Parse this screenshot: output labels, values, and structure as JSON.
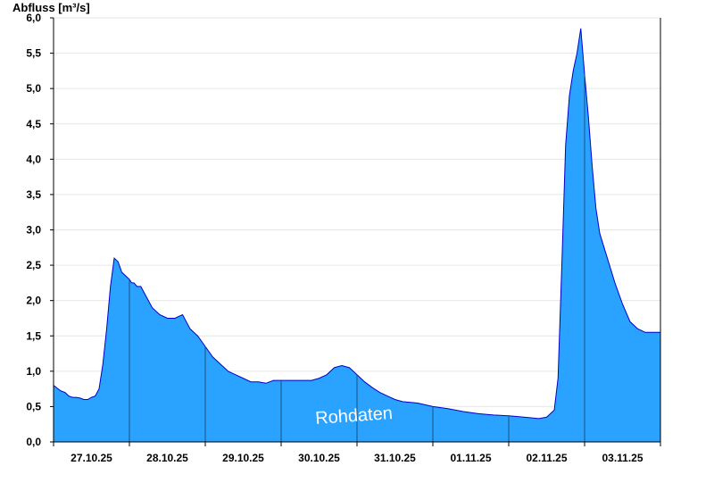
{
  "chart_data": {
    "type": "area",
    "ylabel": "Abfluss [m³/s]",
    "watermark": "Rohdaten",
    "ylim": [
      0,
      6.0
    ],
    "y_ticks": [
      "0,0",
      "0,5",
      "1,0",
      "1,5",
      "2,0",
      "2,5",
      "3,0",
      "3,5",
      "4,0",
      "4,5",
      "5,0",
      "5,5",
      "6,0"
    ],
    "x_range_days": [
      0,
      8
    ],
    "x_tick_labels": [
      "27.10.25",
      "28.10.25",
      "29.10.25",
      "30.10.25",
      "31.10.25",
      "01.11.25",
      "02.11.25",
      "03.11.25"
    ],
    "grid": true,
    "colors": {
      "fill": "#29a3ff",
      "line": "#0000cc",
      "axis": "#000000",
      "grid": "#e6e6e6"
    },
    "series": [
      {
        "x": [
          0,
          0.06,
          0.1,
          0.15,
          0.2,
          0.25,
          0.3,
          0.35,
          0.4,
          0.45,
          0.5,
          0.55,
          0.6,
          0.65,
          0.7,
          0.75,
          0.8,
          0.85,
          0.9,
          0.95,
          1.0,
          1.03,
          1.06,
          1.1,
          1.15,
          1.2,
          1.3,
          1.4,
          1.5,
          1.6,
          1.7,
          1.8,
          1.9,
          2.0,
          2.1,
          2.2,
          2.3,
          2.4,
          2.5,
          2.6,
          2.7,
          2.8,
          2.9,
          3.0,
          3.2,
          3.4,
          3.5,
          3.6,
          3.7,
          3.8,
          3.9,
          4.0,
          4.1,
          4.2,
          4.3,
          4.4,
          4.5,
          4.6,
          4.8,
          5.0,
          5.2,
          5.4,
          5.6,
          5.8,
          6.0,
          6.2,
          6.4,
          6.5,
          6.6,
          6.65,
          6.7,
          6.75,
          6.8,
          6.85,
          6.9,
          6.95,
          7.0,
          7.05,
          7.1,
          7.15,
          7.2,
          7.3,
          7.4,
          7.5,
          7.6,
          7.7,
          7.8,
          7.9,
          8.0
        ],
        "y": [
          0.8,
          0.75,
          0.72,
          0.7,
          0.65,
          0.63,
          0.63,
          0.62,
          0.6,
          0.6,
          0.63,
          0.65,
          0.75,
          1.1,
          1.6,
          2.2,
          2.6,
          2.55,
          2.4,
          2.35,
          2.3,
          2.25,
          2.25,
          2.2,
          2.2,
          2.1,
          1.9,
          1.8,
          1.75,
          1.75,
          1.8,
          1.6,
          1.5,
          1.35,
          1.2,
          1.1,
          1.0,
          0.95,
          0.9,
          0.85,
          0.85,
          0.83,
          0.87,
          0.87,
          0.87,
          0.87,
          0.9,
          0.95,
          1.05,
          1.08,
          1.05,
          0.95,
          0.85,
          0.77,
          0.7,
          0.65,
          0.6,
          0.57,
          0.55,
          0.5,
          0.47,
          0.43,
          0.4,
          0.38,
          0.37,
          0.35,
          0.33,
          0.35,
          0.45,
          0.9,
          2.5,
          4.2,
          4.9,
          5.25,
          5.5,
          5.85,
          5.2,
          4.6,
          3.9,
          3.3,
          2.95,
          2.6,
          2.25,
          1.95,
          1.7,
          1.6,
          1.55,
          1.55,
          1.55
        ]
      }
    ]
  }
}
